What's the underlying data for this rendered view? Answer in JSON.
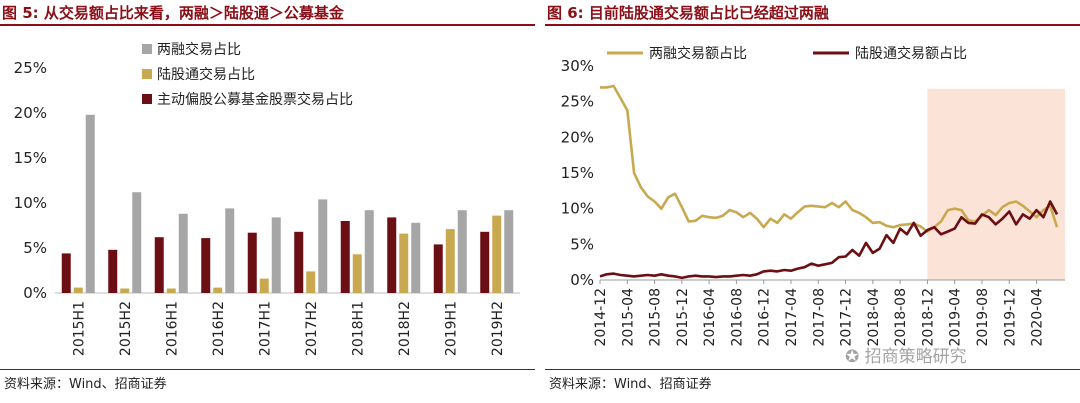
{
  "chart_data": [
    {
      "type": "bar",
      "title_prefix": "图 5:",
      "title": "从交易额占比来看，两融＞陆股通＞公募基金",
      "categories": [
        "2015H1",
        "2015H2",
        "2016H1",
        "2016H2",
        "2017H1",
        "2017H2",
        "2018H1",
        "2018H2",
        "2019H1",
        "2019H2"
      ],
      "series": [
        {
          "name": "主动偏股公募基金股票交易占比",
          "color": "#6b0f14",
          "values": [
            4.4,
            4.8,
            6.2,
            6.1,
            6.7,
            6.8,
            8.0,
            8.4,
            5.4,
            6.8
          ]
        },
        {
          "name": "陆股通交易占比",
          "color": "#c9a94f",
          "values": [
            0.6,
            0.5,
            0.5,
            0.6,
            1.6,
            2.4,
            4.3,
            6.6,
            7.1,
            8.6
          ]
        },
        {
          "name": "两融交易占比",
          "color": "#a6a6a6",
          "values": [
            19.8,
            11.2,
            8.8,
            9.4,
            8.4,
            10.4,
            9.2,
            7.8,
            9.2,
            9.2
          ]
        }
      ],
      "legend_order": [
        "两融交易占比",
        "陆股通交易占比",
        "主动偏股公募基金股票交易占比"
      ],
      "yticks": [
        "0%",
        "5%",
        "10%",
        "15%",
        "20%",
        "25%"
      ],
      "ylim": [
        0,
        25
      ],
      "legend_position": "top-left",
      "source": "资料来源：Wind、招商证券"
    },
    {
      "type": "line",
      "title_prefix": "图 6:",
      "title": "目前陆股通交易额占比已经超过两融",
      "x_ticks": [
        "2014-12",
        "2015-04",
        "2015-08",
        "2015-12",
        "2016-04",
        "2016-08",
        "2016-12",
        "2017-04",
        "2017-08",
        "2017-12",
        "2018-04",
        "2018-08",
        "2018-12",
        "2019-04",
        "2019-08",
        "2019-12",
        "2020-04"
      ],
      "x_start": "2014-12",
      "x_end": "2020-07",
      "yticks": [
        "0%",
        "5%",
        "10%",
        "15%",
        "20%",
        "25%",
        "30%"
      ],
      "ylim": [
        0,
        30
      ],
      "highlight_range": [
        "2018-12",
        "2020-07"
      ],
      "highlight_color": "#fbe3d8",
      "series": [
        {
          "name": "两融交易额占比",
          "color": "#c9a94f",
          "points": [
            [
              "2014-12",
              27.0
            ],
            [
              "2015-01",
              27.0
            ],
            [
              "2015-02",
              27.2
            ],
            [
              "2015-03",
              25.5
            ],
            [
              "2015-04",
              23.8
            ],
            [
              "2015-05",
              15.0
            ],
            [
              "2015-06",
              13.0
            ],
            [
              "2015-07",
              11.7
            ],
            [
              "2015-08",
              11.0
            ],
            [
              "2015-09",
              10.0
            ],
            [
              "2015-10",
              11.6
            ],
            [
              "2015-11",
              12.1
            ],
            [
              "2015-12",
              10.2
            ],
            [
              "2016-01",
              8.2
            ],
            [
              "2016-02",
              8.3
            ],
            [
              "2016-03",
              9.0
            ],
            [
              "2016-04",
              8.8
            ],
            [
              "2016-05",
              8.7
            ],
            [
              "2016-06",
              9.0
            ],
            [
              "2016-07",
              9.8
            ],
            [
              "2016-08",
              9.5
            ],
            [
              "2016-09",
              8.8
            ],
            [
              "2016-10",
              9.4
            ],
            [
              "2016-11",
              8.6
            ],
            [
              "2016-12",
              7.4
            ],
            [
              "2017-01",
              8.6
            ],
            [
              "2017-02",
              8.0
            ],
            [
              "2017-03",
              9.2
            ],
            [
              "2017-04",
              8.6
            ],
            [
              "2017-05",
              9.5
            ],
            [
              "2017-06",
              10.3
            ],
            [
              "2017-07",
              10.4
            ],
            [
              "2017-08",
              10.3
            ],
            [
              "2017-09",
              10.2
            ],
            [
              "2017-10",
              10.8
            ],
            [
              "2017-11",
              10.2
            ],
            [
              "2017-12",
              11.0
            ],
            [
              "2018-01",
              9.8
            ],
            [
              "2018-02",
              9.4
            ],
            [
              "2018-03",
              8.8
            ],
            [
              "2018-04",
              8.0
            ],
            [
              "2018-05",
              8.1
            ],
            [
              "2018-06",
              7.6
            ],
            [
              "2018-07",
              7.4
            ],
            [
              "2018-08",
              7.7
            ],
            [
              "2018-09",
              7.8
            ],
            [
              "2018-10",
              7.9
            ],
            [
              "2018-11",
              7.5
            ],
            [
              "2018-12",
              6.8
            ],
            [
              "2019-01",
              7.4
            ],
            [
              "2019-02",
              8.2
            ],
            [
              "2019-03",
              9.8
            ],
            [
              "2019-04",
              10.0
            ],
            [
              "2019-05",
              9.8
            ],
            [
              "2019-06",
              8.4
            ],
            [
              "2019-07",
              8.2
            ],
            [
              "2019-08",
              9.0
            ],
            [
              "2019-09",
              9.8
            ],
            [
              "2019-10",
              9.1
            ],
            [
              "2019-11",
              10.2
            ],
            [
              "2019-12",
              10.8
            ],
            [
              "2020-01",
              11.0
            ],
            [
              "2020-02",
              10.4
            ],
            [
              "2020-03",
              9.6
            ],
            [
              "2020-04",
              8.8
            ],
            [
              "2020-05",
              9.8
            ],
            [
              "2020-06",
              10.4
            ],
            [
              "2020-07",
              7.4
            ]
          ]
        },
        {
          "name": "陆股通交易额占比",
          "color": "#6b0f14",
          "points": [
            [
              "2014-12",
              0.5
            ],
            [
              "2015-01",
              0.8
            ],
            [
              "2015-02",
              0.9
            ],
            [
              "2015-03",
              0.7
            ],
            [
              "2015-04",
              0.6
            ],
            [
              "2015-05",
              0.5
            ],
            [
              "2015-06",
              0.6
            ],
            [
              "2015-07",
              0.7
            ],
            [
              "2015-08",
              0.6
            ],
            [
              "2015-09",
              0.8
            ],
            [
              "2015-10",
              0.6
            ],
            [
              "2015-11",
              0.5
            ],
            [
              "2015-12",
              0.3
            ],
            [
              "2016-01",
              0.5
            ],
            [
              "2016-02",
              0.6
            ],
            [
              "2016-03",
              0.5
            ],
            [
              "2016-04",
              0.5
            ],
            [
              "2016-05",
              0.4
            ],
            [
              "2016-06",
              0.5
            ],
            [
              "2016-07",
              0.5
            ],
            [
              "2016-08",
              0.6
            ],
            [
              "2016-09",
              0.7
            ],
            [
              "2016-10",
              0.6
            ],
            [
              "2016-11",
              0.8
            ],
            [
              "2016-12",
              1.2
            ],
            [
              "2017-01",
              1.3
            ],
            [
              "2017-02",
              1.2
            ],
            [
              "2017-03",
              1.4
            ],
            [
              "2017-04",
              1.3
            ],
            [
              "2017-05",
              1.6
            ],
            [
              "2017-06",
              1.8
            ],
            [
              "2017-07",
              2.3
            ],
            [
              "2017-08",
              2.0
            ],
            [
              "2017-09",
              2.2
            ],
            [
              "2017-10",
              2.4
            ],
            [
              "2017-11",
              3.2
            ],
            [
              "2017-12",
              3.3
            ],
            [
              "2018-01",
              4.2
            ],
            [
              "2018-02",
              3.4
            ],
            [
              "2018-03",
              5.2
            ],
            [
              "2018-04",
              3.8
            ],
            [
              "2018-05",
              4.4
            ],
            [
              "2018-06",
              6.3
            ],
            [
              "2018-07",
              5.2
            ],
            [
              "2018-08",
              7.2
            ],
            [
              "2018-09",
              6.4
            ],
            [
              "2018-10",
              8.0
            ],
            [
              "2018-11",
              6.2
            ],
            [
              "2018-12",
              7.0
            ],
            [
              "2019-01",
              7.4
            ],
            [
              "2019-02",
              6.4
            ],
            [
              "2019-03",
              6.8
            ],
            [
              "2019-04",
              7.2
            ],
            [
              "2019-05",
              8.8
            ],
            [
              "2019-06",
              8.0
            ],
            [
              "2019-07",
              7.9
            ],
            [
              "2019-08",
              9.2
            ],
            [
              "2019-09",
              8.8
            ],
            [
              "2019-10",
              7.8
            ],
            [
              "2019-11",
              8.6
            ],
            [
              "2019-12",
              9.6
            ],
            [
              "2020-01",
              7.8
            ],
            [
              "2020-02",
              9.2
            ],
            [
              "2020-03",
              8.6
            ],
            [
              "2020-04",
              9.8
            ],
            [
              "2020-05",
              8.8
            ],
            [
              "2020-06",
              11.0
            ],
            [
              "2020-07",
              9.2
            ]
          ]
        }
      ],
      "legend_position": "top",
      "source": "资料来源：Wind、招商证券",
      "watermark": "招商策略研究"
    }
  ]
}
